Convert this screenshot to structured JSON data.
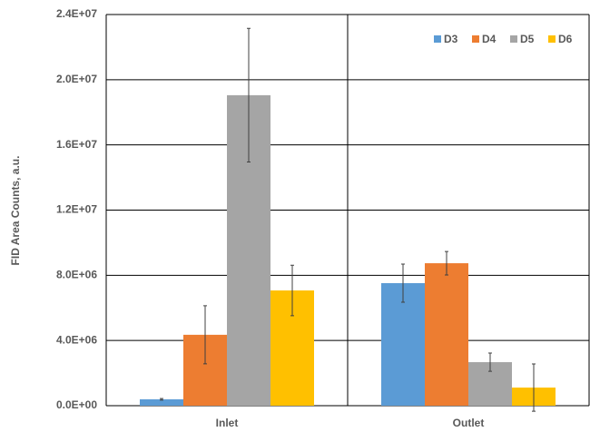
{
  "chart_data": {
    "type": "bar",
    "y_label": "FID Area Counts, a.u.",
    "categories": [
      "Inlet",
      "Outlet"
    ],
    "series": [
      {
        "name": "D3",
        "color": "#5b9bd5",
        "values": [
          390000,
          7520000
        ],
        "errors": [
          50000,
          1170000
        ]
      },
      {
        "name": "D4",
        "color": "#ed7d31",
        "values": [
          4350000,
          8740000
        ],
        "errors": [
          1780000,
          720000
        ]
      },
      {
        "name": "D5",
        "color": "#a5a5a5",
        "values": [
          19050000,
          2670000
        ],
        "errors": [
          4100000,
          560000
        ]
      },
      {
        "name": "D6",
        "color": "#ffc000",
        "values": [
          7070000,
          1110000
        ],
        "errors": [
          1550000,
          1450000
        ]
      }
    ],
    "ylim": [
      0,
      24000000
    ],
    "yticks": [
      {
        "value": 0,
        "label": "0.0E+00"
      },
      {
        "value": 4000000,
        "label": "4.0E+06"
      },
      {
        "value": 8000000,
        "label": "8.0E+06"
      },
      {
        "value": 12000000,
        "label": "1.2E+07"
      },
      {
        "value": 16000000,
        "label": "1.6E+07"
      },
      {
        "value": 20000000,
        "label": "2.0E+07"
      },
      {
        "value": 24000000,
        "label": "2.4E+07"
      }
    ],
    "grid": true,
    "legend": "top-right"
  }
}
